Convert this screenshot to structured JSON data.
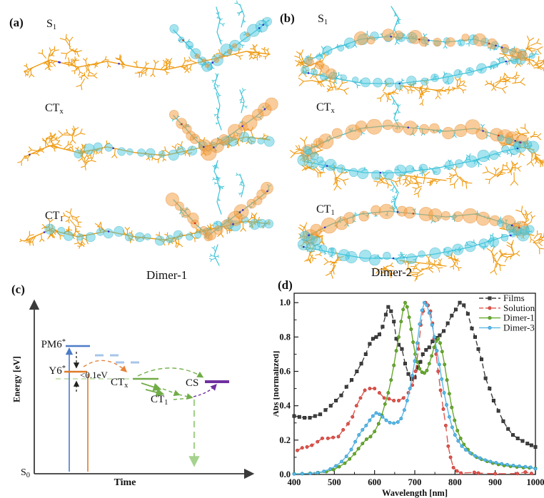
{
  "figure": {
    "panel_a": {
      "label": "(a)",
      "caption": "Dimer-1",
      "states": [
        {
          "base": "S",
          "sub": "1"
        },
        {
          "base": "CT",
          "sub": "x"
        },
        {
          "base": "CT",
          "sub": "1"
        }
      ]
    },
    "panel_b": {
      "label": "(b)",
      "caption": "Dimer-2",
      "states": [
        {
          "base": "S",
          "sub": "1"
        },
        {
          "base": "CT",
          "sub": "x"
        },
        {
          "base": "CT",
          "sub": "1"
        }
      ]
    },
    "panel_c": {
      "label": "(c)",
      "xlabel": "Time",
      "ylabel": "Energy [eV]",
      "gap_label": "<0.1eV",
      "levels": {
        "pm6": {
          "base": "PM6",
          "sup": "*"
        },
        "y6": {
          "base": "Y6",
          "sup": "*"
        },
        "ctx": {
          "base": "CT",
          "sub": "x"
        },
        "ct1": {
          "base": "CT",
          "sub": "1"
        },
        "cs": {
          "base": "CS"
        },
        "s0": {
          "base": "S",
          "sub": "0"
        }
      },
      "colors": {
        "pm6": "#4c7cc7",
        "y6": "#e07b28",
        "ct": "#70ad47",
        "cs": "#7030a0"
      }
    },
    "panel_d": {
      "label": "(d)"
    }
  },
  "chart_data": {
    "type": "line",
    "title": "",
    "xlabel": "Wavelength [nm]",
    "ylabel": "Abs [normalized]",
    "xlim": [
      400,
      1000
    ],
    "ylim": [
      0.0,
      1.0
    ],
    "xticks": [
      400,
      500,
      600,
      700,
      800,
      900,
      1000
    ],
    "yticks": [
      "0.0",
      "0.2",
      "0.4",
      "0.6",
      "0.8",
      "1.0"
    ],
    "grid": false,
    "legend_position": "top-right",
    "series": [
      {
        "name": "Films",
        "color": "#3f3f3f",
        "edge": "#1e1e1e",
        "dash": true,
        "marker": "square",
        "points": [
          [
            400,
            0.34
          ],
          [
            413,
            0.335
          ],
          [
            426,
            0.33
          ],
          [
            439,
            0.33
          ],
          [
            452,
            0.34
          ],
          [
            465,
            0.35
          ],
          [
            478,
            0.375
          ],
          [
            491,
            0.4
          ],
          [
            504,
            0.43
          ],
          [
            517,
            0.46
          ],
          [
            530,
            0.51
          ],
          [
            543,
            0.55
          ],
          [
            556,
            0.6
          ],
          [
            567,
            0.645
          ],
          [
            578,
            0.7
          ],
          [
            588,
            0.76
          ],
          [
            596,
            0.79
          ],
          [
            604,
            0.8
          ],
          [
            612,
            0.815
          ],
          [
            620,
            0.86
          ],
          [
            628,
            0.93
          ],
          [
            634,
            0.975
          ],
          [
            641,
            0.95
          ],
          [
            648,
            0.89
          ],
          [
            654,
            0.79
          ],
          [
            660,
            0.755
          ],
          [
            668,
            0.73
          ],
          [
            676,
            0.645
          ],
          [
            684,
            0.585
          ],
          [
            692,
            0.555
          ],
          [
            700,
            0.565
          ],
          [
            708,
            0.625
          ],
          [
            714,
            0.655
          ],
          [
            720,
            0.7
          ],
          [
            728,
            0.725
          ],
          [
            736,
            0.74
          ],
          [
            744,
            0.775
          ],
          [
            752,
            0.795
          ],
          [
            762,
            0.81
          ],
          [
            772,
            0.835
          ],
          [
            782,
            0.88
          ],
          [
            792,
            0.925
          ],
          [
            802,
            0.96
          ],
          [
            812,
            1.0
          ],
          [
            822,
            0.985
          ],
          [
            832,
            0.935
          ],
          [
            842,
            0.85
          ],
          [
            850,
            0.8
          ],
          [
            858,
            0.73
          ],
          [
            866,
            0.67
          ],
          [
            876,
            0.56
          ],
          [
            886,
            0.5
          ],
          [
            896,
            0.43
          ],
          [
            908,
            0.37
          ],
          [
            920,
            0.31
          ],
          [
            932,
            0.265
          ],
          [
            944,
            0.23
          ],
          [
            956,
            0.21
          ],
          [
            968,
            0.195
          ],
          [
            980,
            0.18
          ],
          [
            990,
            0.17
          ],
          [
            1000,
            0.16
          ]
        ]
      },
      {
        "name": "Solution",
        "color": "#e0564e",
        "edge": "#bc352e",
        "dash": true,
        "marker": "circle",
        "points": [
          [
            408,
            0.14
          ],
          [
            420,
            0.155
          ],
          [
            432,
            0.16
          ],
          [
            444,
            0.17
          ],
          [
            458,
            0.19
          ],
          [
            470,
            0.21
          ],
          [
            484,
            0.21
          ],
          [
            497,
            0.215
          ],
          [
            510,
            0.22
          ],
          [
            522,
            0.26
          ],
          [
            534,
            0.295
          ],
          [
            545,
            0.335
          ],
          [
            555,
            0.4
          ],
          [
            565,
            0.445
          ],
          [
            576,
            0.49
          ],
          [
            588,
            0.5
          ],
          [
            600,
            0.5
          ],
          [
            612,
            0.475
          ],
          [
            624,
            0.445
          ],
          [
            636,
            0.44
          ],
          [
            648,
            0.43
          ],
          [
            660,
            0.43
          ],
          [
            672,
            0.445
          ],
          [
            684,
            0.475
          ],
          [
            694,
            0.52
          ],
          [
            702,
            0.6
          ],
          [
            709,
            0.73
          ],
          [
            715,
            0.87
          ],
          [
            721,
            0.95
          ],
          [
            727,
            1.0
          ],
          [
            733,
            0.985
          ],
          [
            739,
            0.95
          ],
          [
            744,
            0.88
          ],
          [
            748,
            0.79
          ],
          [
            753,
            0.7
          ],
          [
            758,
            0.6
          ],
          [
            764,
            0.49
          ],
          [
            771,
            0.38
          ],
          [
            777,
            0.285
          ],
          [
            783,
            0.165
          ],
          [
            789,
            0.1
          ],
          [
            796,
            0.04
          ],
          [
            805,
            0.02
          ],
          [
            815,
            0.008
          ],
          [
            848,
            0.012
          ],
          [
            858,
            0.008
          ],
          [
            900,
            0.004
          ],
          [
            955,
            0.005
          ],
          [
            975,
            0.014
          ],
          [
            990,
            0.006
          ]
        ]
      },
      {
        "name": "Dimer-1",
        "color": "#69a92f",
        "edge": "#4b8a1d",
        "dash": false,
        "marker": "circle",
        "points": [
          [
            400,
            0.004
          ],
          [
            420,
            0.005
          ],
          [
            440,
            0.007
          ],
          [
            460,
            0.01
          ],
          [
            480,
            0.016
          ],
          [
            498,
            0.028
          ],
          [
            512,
            0.045
          ],
          [
            526,
            0.065
          ],
          [
            538,
            0.09
          ],
          [
            550,
            0.12
          ],
          [
            560,
            0.15
          ],
          [
            570,
            0.18
          ],
          [
            580,
            0.205
          ],
          [
            590,
            0.22
          ],
          [
            600,
            0.25
          ],
          [
            610,
            0.295
          ],
          [
            618,
            0.345
          ],
          [
            626,
            0.41
          ],
          [
            634,
            0.475
          ],
          [
            641,
            0.55
          ],
          [
            648,
            0.635
          ],
          [
            654,
            0.72
          ],
          [
            660,
            0.8
          ],
          [
            666,
            0.89
          ],
          [
            671,
            0.96
          ],
          [
            676,
            1.0
          ],
          [
            681,
            0.975
          ],
          [
            686,
            0.915
          ],
          [
            691,
            0.845
          ],
          [
            696,
            0.77
          ],
          [
            701,
            0.7
          ],
          [
            706,
            0.655
          ],
          [
            712,
            0.615
          ],
          [
            718,
            0.595
          ],
          [
            724,
            0.59
          ],
          [
            730,
            0.605
          ],
          [
            736,
            0.645
          ],
          [
            742,
            0.69
          ],
          [
            748,
            0.74
          ],
          [
            753,
            0.775
          ],
          [
            758,
            0.79
          ],
          [
            763,
            0.765
          ],
          [
            768,
            0.715
          ],
          [
            774,
            0.64
          ],
          [
            780,
            0.55
          ],
          [
            786,
            0.47
          ],
          [
            792,
            0.39
          ],
          [
            799,
            0.315
          ],
          [
            806,
            0.255
          ],
          [
            814,
            0.21
          ],
          [
            822,
            0.175
          ],
          [
            832,
            0.145
          ],
          [
            842,
            0.12
          ],
          [
            854,
            0.1
          ],
          [
            866,
            0.088
          ],
          [
            880,
            0.076
          ],
          [
            894,
            0.066
          ],
          [
            908,
            0.058
          ],
          [
            922,
            0.052
          ],
          [
            938,
            0.047
          ],
          [
            954,
            0.043
          ],
          [
            970,
            0.04
          ],
          [
            985,
            0.038
          ],
          [
            1000,
            0.036
          ]
        ]
      },
      {
        "name": "Dimer-3",
        "color": "#5ab9e6",
        "edge": "#2f94c8",
        "dash": false,
        "marker": "circle",
        "points": [
          [
            400,
            0.003
          ],
          [
            420,
            0.004
          ],
          [
            440,
            0.006
          ],
          [
            458,
            0.01
          ],
          [
            474,
            0.018
          ],
          [
            490,
            0.032
          ],
          [
            504,
            0.05
          ],
          [
            518,
            0.075
          ],
          [
            530,
            0.105
          ],
          [
            542,
            0.145
          ],
          [
            552,
            0.19
          ],
          [
            561,
            0.23
          ],
          [
            570,
            0.26
          ],
          [
            579,
            0.285
          ],
          [
            588,
            0.315
          ],
          [
            596,
            0.34
          ],
          [
            604,
            0.358
          ],
          [
            612,
            0.35
          ],
          [
            620,
            0.335
          ],
          [
            629,
            0.315
          ],
          [
            638,
            0.302
          ],
          [
            648,
            0.298
          ],
          [
            658,
            0.305
          ],
          [
            666,
            0.325
          ],
          [
            674,
            0.375
          ],
          [
            681,
            0.43
          ],
          [
            688,
            0.5
          ],
          [
            694,
            0.575
          ],
          [
            700,
            0.66
          ],
          [
            706,
            0.765
          ],
          [
            712,
            0.875
          ],
          [
            718,
            0.955
          ],
          [
            724,
            1.0
          ],
          [
            730,
            0.985
          ],
          [
            736,
            0.94
          ],
          [
            743,
            0.87
          ],
          [
            749,
            0.8
          ],
          [
            755,
            0.72
          ],
          [
            761,
            0.64
          ],
          [
            767,
            0.555
          ],
          [
            773,
            0.475
          ],
          [
            779,
            0.405
          ],
          [
            786,
            0.335
          ],
          [
            793,
            0.275
          ],
          [
            800,
            0.23
          ],
          [
            808,
            0.195
          ],
          [
            817,
            0.165
          ],
          [
            827,
            0.143
          ],
          [
            838,
            0.125
          ],
          [
            850,
            0.108
          ],
          [
            862,
            0.095
          ],
          [
            875,
            0.084
          ],
          [
            888,
            0.075
          ],
          [
            902,
            0.068
          ],
          [
            916,
            0.062
          ],
          [
            930,
            0.057
          ],
          [
            945,
            0.052
          ],
          [
            960,
            0.048
          ],
          [
            975,
            0.045
          ],
          [
            988,
            0.042
          ],
          [
            1000,
            0.033
          ]
        ]
      }
    ]
  }
}
